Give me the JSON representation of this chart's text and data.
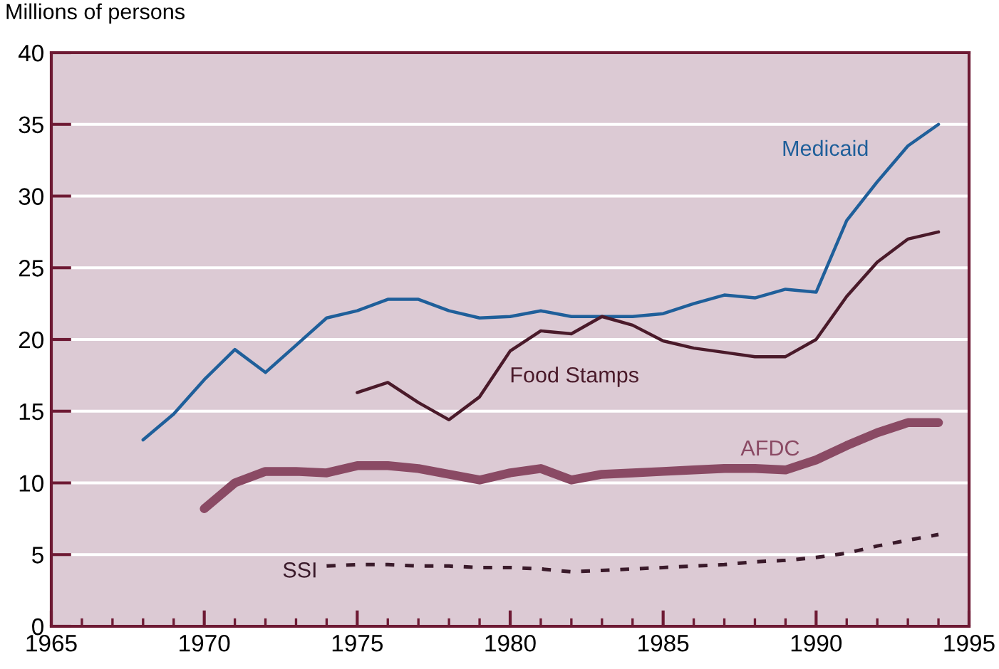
{
  "chart_data": {
    "type": "line",
    "ylabel": "Millions of persons",
    "xlim": [
      1965,
      1995
    ],
    "xticks": [
      1965,
      1970,
      1975,
      1980,
      1985,
      1990,
      1995
    ],
    "ylim": [
      0,
      40
    ],
    "yticks": [
      0,
      5,
      10,
      15,
      20,
      25,
      30,
      35,
      40
    ],
    "grid": "y",
    "legend": false,
    "series": [
      {
        "name": "Medicaid",
        "color": "#1f5f9a",
        "x": [
          1968,
          1969,
          1970,
          1971,
          1972,
          1973,
          1974,
          1975,
          1976,
          1977,
          1978,
          1979,
          1980,
          1981,
          1982,
          1983,
          1984,
          1985,
          1986,
          1987,
          1988,
          1989,
          1990,
          1991,
          1992,
          1993,
          1994
        ],
        "values": [
          13.0,
          14.8,
          17.2,
          19.3,
          17.7,
          19.6,
          21.5,
          22.0,
          22.8,
          22.8,
          22.0,
          21.5,
          21.6,
          22.0,
          21.6,
          21.6,
          21.6,
          21.8,
          22.5,
          23.1,
          22.9,
          23.5,
          23.3,
          28.3,
          31.0,
          33.5,
          35.0
        ]
      },
      {
        "name": "Food Stamps",
        "color": "#4a1a2a",
        "x": [
          1975,
          1976,
          1977,
          1978,
          1979,
          1980,
          1981,
          1982,
          1983,
          1984,
          1985,
          1986,
          1987,
          1988,
          1989,
          1990,
          1991,
          1992,
          1993,
          1994
        ],
        "values": [
          16.3,
          17.0,
          15.6,
          14.4,
          16.0,
          19.2,
          20.6,
          20.4,
          21.6,
          21.0,
          19.9,
          19.4,
          19.1,
          18.8,
          18.8,
          20.0,
          23.0,
          25.4,
          27.0,
          27.5
        ]
      },
      {
        "name": "AFDC",
        "color": "#8a4a64",
        "x": [
          1970,
          1971,
          1972,
          1973,
          1974,
          1975,
          1976,
          1977,
          1978,
          1979,
          1980,
          1981,
          1982,
          1983,
          1984,
          1985,
          1986,
          1987,
          1988,
          1989,
          1990,
          1991,
          1992,
          1993,
          1994
        ],
        "values": [
          8.2,
          10.0,
          10.8,
          10.8,
          10.7,
          11.2,
          11.2,
          11.0,
          10.6,
          10.2,
          10.7,
          11.0,
          10.2,
          10.6,
          10.7,
          10.8,
          10.9,
          11.0,
          11.0,
          10.9,
          11.6,
          12.6,
          13.5,
          14.2,
          14.2
        ]
      },
      {
        "name": "SSI",
        "color": "#3a1a2a",
        "line_style": "dashed",
        "x": [
          1974,
          1975,
          1976,
          1977,
          1978,
          1979,
          1980,
          1981,
          1982,
          1983,
          1984,
          1985,
          1986,
          1987,
          1988,
          1989,
          1990,
          1991,
          1992,
          1993,
          1994
        ],
        "values": [
          4.2,
          4.3,
          4.3,
          4.2,
          4.2,
          4.1,
          4.1,
          4.0,
          3.8,
          3.9,
          4.0,
          4.1,
          4.2,
          4.3,
          4.5,
          4.6,
          4.8,
          5.1,
          5.6,
          6.0,
          6.4
        ]
      }
    ]
  }
}
